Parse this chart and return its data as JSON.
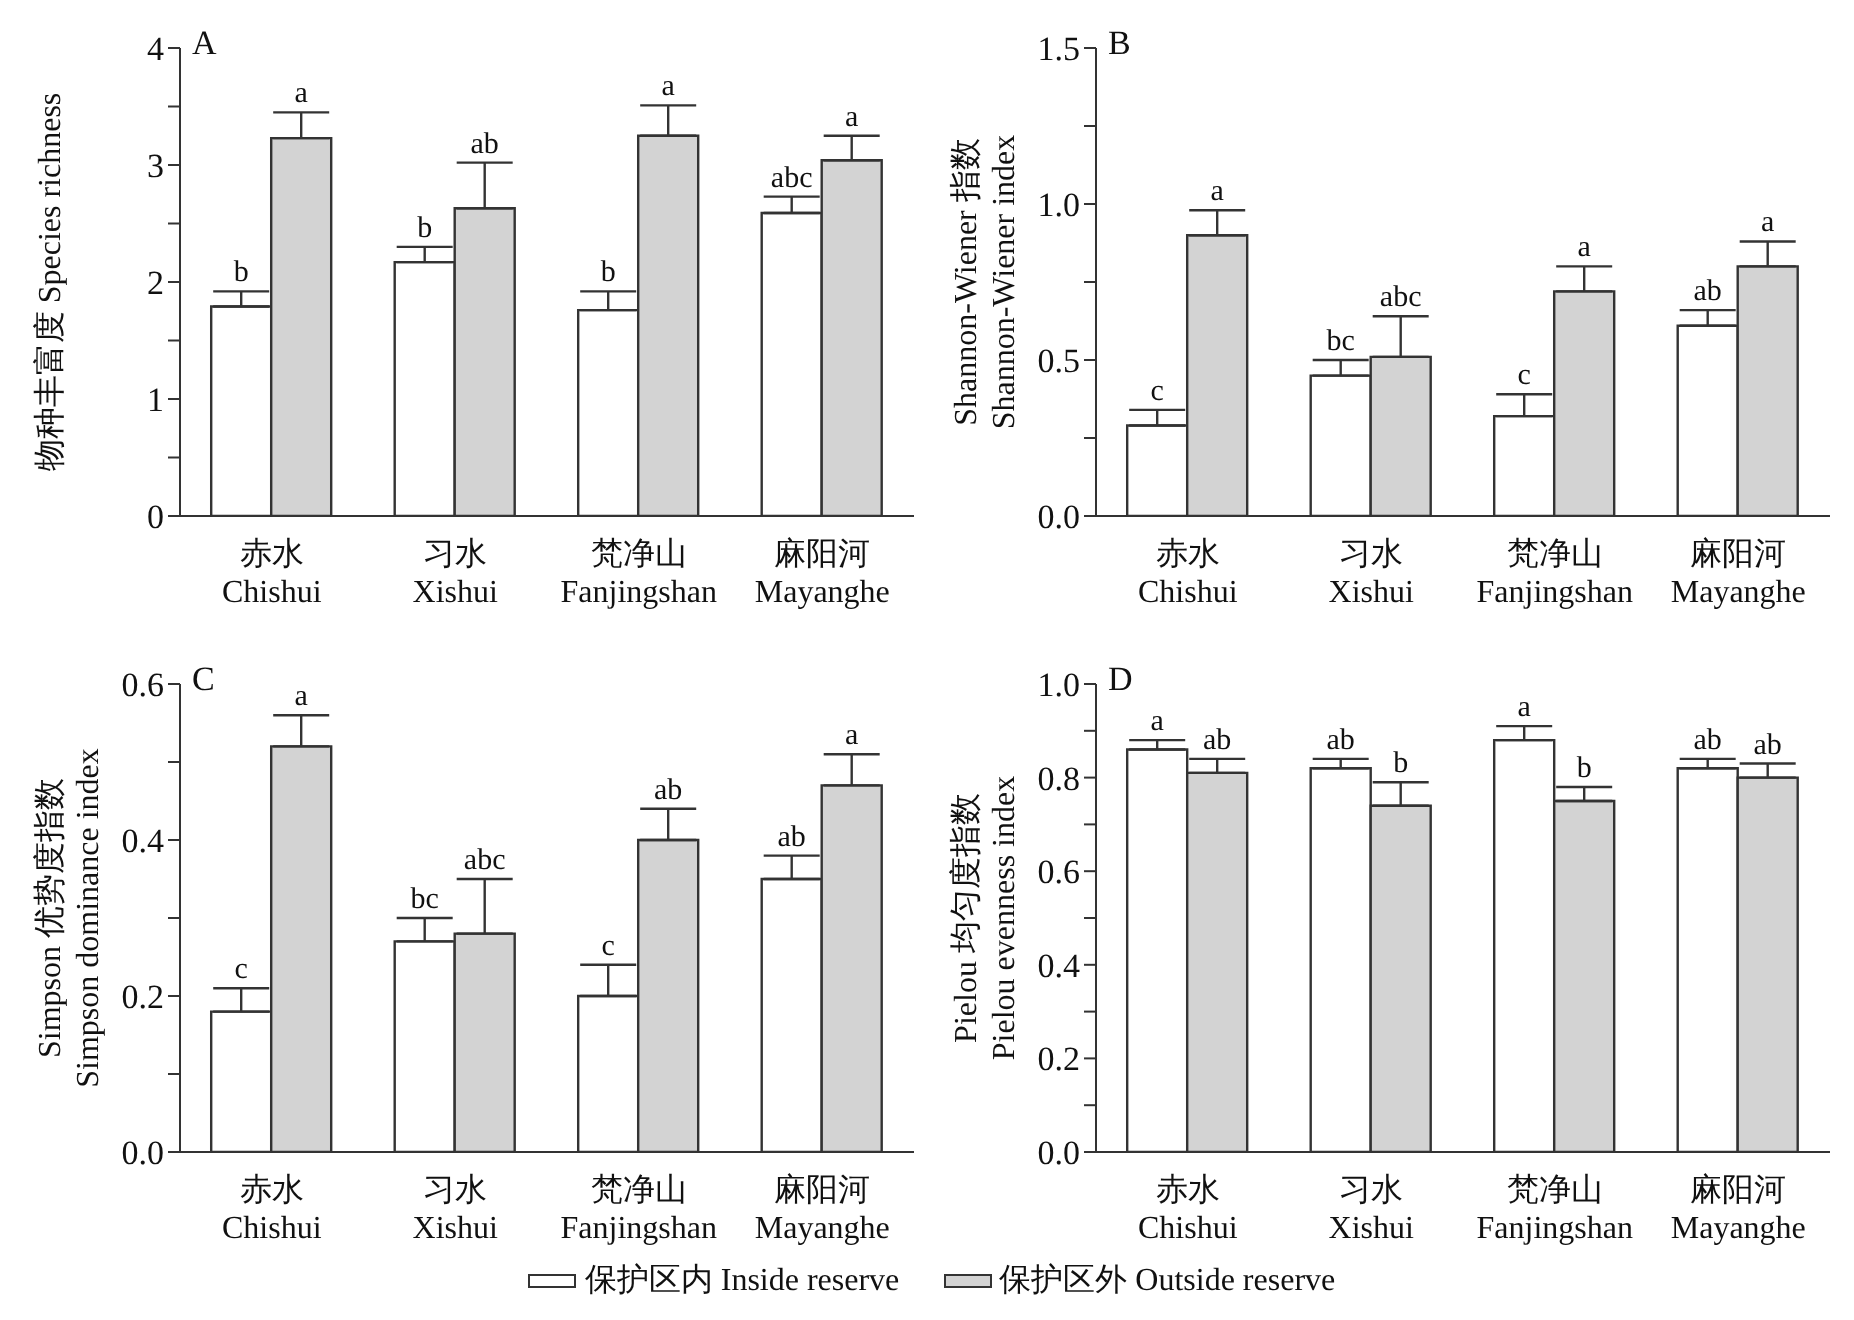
{
  "chart_data": [
    {
      "type": "bar",
      "title": "A",
      "ylabel": "物种丰富度 Species richness",
      "categories": [
        "赤水\nChishui",
        "习水\nXishui",
        "梵净山\nFanjingshan",
        "麻阳河\nMayanghe"
      ],
      "ylim": [
        0,
        4
      ],
      "yticks": [
        0,
        {
          "value": 0.5,
          "label": null
        },
        1,
        {
          "value": 1.5,
          "label": null
        },
        2,
        {
          "value": 2.5,
          "label": null
        },
        3,
        {
          "value": 3.5,
          "label": null
        },
        4
      ],
      "series": [
        {
          "color": "#ffffff",
          "values": [
            1.79,
            2.17,
            1.76,
            2.59
          ],
          "errors": [
            0.13,
            0.13,
            0.16,
            0.14
          ],
          "value_labels": [
            "b",
            "b",
            "b",
            "abc"
          ]
        },
        {
          "color": "#d3d3d3",
          "values": [
            3.23,
            2.63,
            3.25,
            3.04
          ],
          "errors": [
            0.22,
            0.39,
            0.26,
            0.21
          ],
          "value_labels": [
            "a",
            "ab",
            "a",
            "a"
          ]
        }
      ]
    },
    {
      "type": "bar",
      "title": "B",
      "ylabel": "Shannon-Wiener 指数\nShannon-Wiener index",
      "categories": [
        "赤水\nChishui",
        "习水\nXishui",
        "梵净山\nFanjingshan",
        "麻阳河\nMayanghe"
      ],
      "ylim": [
        0,
        1.5
      ],
      "yticks": [
        {
          "value": 0,
          "label": "0.0"
        },
        {
          "value": 0.25,
          "label": null
        },
        0.5,
        {
          "value": 0.75,
          "label": null
        },
        {
          "value": 1,
          "label": "1.0"
        },
        {
          "value": 1.25,
          "label": null
        },
        1.5
      ],
      "series": [
        {
          "color": "#ffffff",
          "values": [
            0.29,
            0.45,
            0.32,
            0.61
          ],
          "errors": [
            0.05,
            0.05,
            0.07,
            0.05
          ],
          "value_labels": [
            "c",
            "bc",
            "c",
            "ab"
          ]
        },
        {
          "color": "#d3d3d3",
          "values": [
            0.9,
            0.51,
            0.72,
            0.8
          ],
          "errors": [
            0.08,
            0.13,
            0.08,
            0.08
          ],
          "value_labels": [
            "a",
            "abc",
            "a",
            "a"
          ]
        }
      ]
    },
    {
      "type": "bar",
      "title": "C",
      "ylabel": "Simpson 优势度指数\nSimpson dominance index",
      "categories": [
        "赤水\nChishui",
        "习水\nXishui",
        "梵净山\nFanjingshan",
        "麻阳河\nMayanghe"
      ],
      "ylim": [
        0,
        0.6
      ],
      "yticks": [
        {
          "value": 0,
          "label": "0.0"
        },
        {
          "value": 0.1,
          "label": null
        },
        0.2,
        {
          "value": 0.3,
          "label": null
        },
        0.4,
        {
          "value": 0.5,
          "label": null
        },
        0.6
      ],
      "series": [
        {
          "color": "#ffffff",
          "values": [
            0.18,
            0.27,
            0.2,
            0.35
          ],
          "errors": [
            0.03,
            0.03,
            0.04,
            0.03
          ],
          "value_labels": [
            "c",
            "bc",
            "c",
            "ab"
          ]
        },
        {
          "color": "#d3d3d3",
          "values": [
            0.52,
            0.28,
            0.4,
            0.47
          ],
          "errors": [
            0.04,
            0.07,
            0.04,
            0.04
          ],
          "value_labels": [
            "a",
            "abc",
            "ab",
            "a"
          ]
        }
      ]
    },
    {
      "type": "bar",
      "title": "D",
      "ylabel": "Pielou 均匀度指数\nPielou evenness index",
      "categories": [
        "赤水\nChishui",
        "习水\nXishui",
        "梵净山\nFanjingshan",
        "麻阳河\nMayanghe"
      ],
      "ylim": [
        0,
        1
      ],
      "yticks": [
        {
          "value": 0,
          "label": "0.0"
        },
        {
          "value": 0.1,
          "label": null
        },
        0.2,
        {
          "value": 0.3,
          "label": null
        },
        0.4,
        {
          "value": 0.5,
          "label": null
        },
        0.6,
        {
          "value": 0.7,
          "label": null
        },
        0.8,
        {
          "value": 0.9,
          "label": null
        },
        {
          "value": 1,
          "label": "1.0"
        }
      ],
      "legend": "bottom",
      "series": [
        {
          "name": "保护区内 Inside reserve",
          "color": "#ffffff",
          "values": [
            0.86,
            0.82,
            0.88,
            0.82
          ],
          "errors": [
            0.02,
            0.02,
            0.03,
            0.02
          ],
          "value_labels": [
            "a",
            "ab",
            "a",
            "ab"
          ]
        },
        {
          "name": "保护区外 Outside reserve",
          "color": "#d3d3d3",
          "values": [
            0.81,
            0.74,
            0.75,
            0.8
          ],
          "errors": [
            0.03,
            0.05,
            0.03,
            0.03
          ],
          "value_labels": [
            "ab",
            "b",
            "b",
            "ab"
          ]
        }
      ]
    }
  ]
}
